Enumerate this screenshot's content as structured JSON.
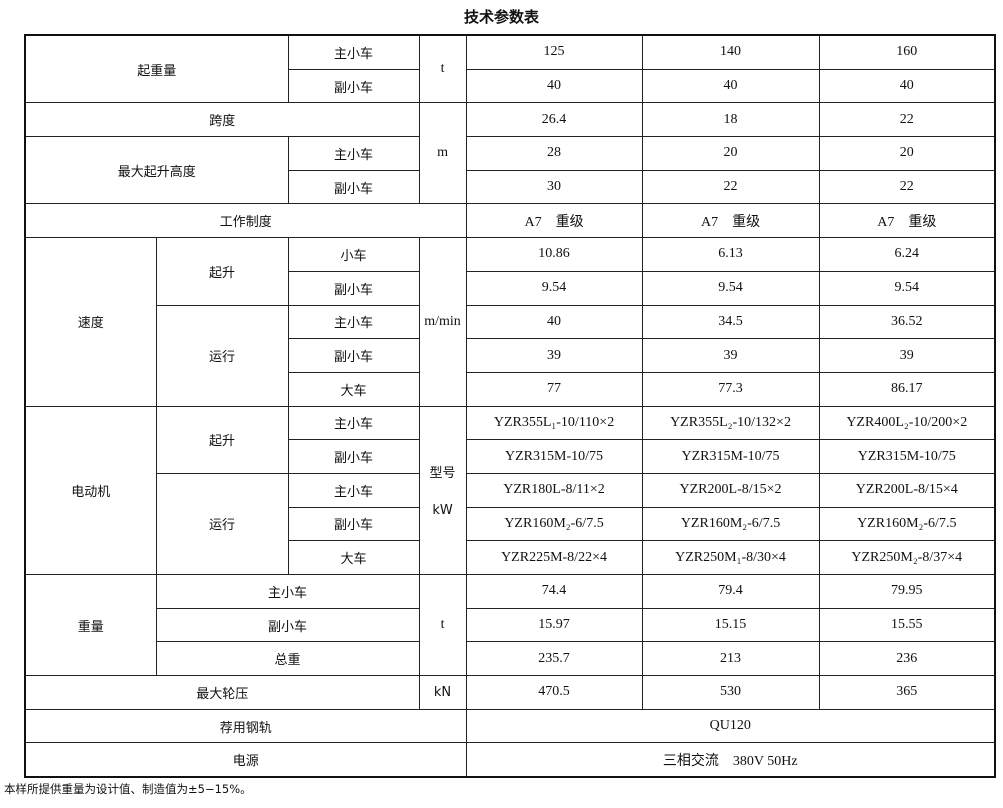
{
  "title": "技术参数表",
  "lifting_capacity": {
    "label": "起重量",
    "main": "主小车",
    "aux": "副小车",
    "unit": "t",
    "main_values": [
      "125",
      "140",
      "160"
    ],
    "aux_values": [
      "40",
      "40",
      "40"
    ]
  },
  "span": {
    "label": "跨度",
    "unit": "m",
    "values": [
      "26.4",
      "18",
      "22"
    ]
  },
  "max_lift_height": {
    "label": "最大起升高度",
    "main": "主小车",
    "aux": "副小车",
    "main_values": [
      "28",
      "20",
      "20"
    ],
    "aux_values": [
      "30",
      "22",
      "22"
    ]
  },
  "work_duty": {
    "label": "工作制度",
    "class": "A7",
    "grade": "重级"
  },
  "speed": {
    "label": "速度",
    "unit": "m/min",
    "hoist": "起升",
    "travel": "运行",
    "hoist_trolley": {
      "label": "小车",
      "values": [
        "10.86",
        "6.13",
        "6.24"
      ]
    },
    "hoist_aux": {
      "label": "副小车",
      "values": [
        "9.54",
        "9.54",
        "9.54"
      ]
    },
    "travel_main": {
      "label": "主小车",
      "values": [
        "40",
        "34.5",
        "36.52"
      ]
    },
    "travel_aux": {
      "label": "副小车",
      "values": [
        "39",
        "39",
        "39"
      ]
    },
    "travel_crane": {
      "label": "大车",
      "values": [
        "77",
        "77.3",
        "86.17"
      ]
    }
  },
  "motor": {
    "label": "电动机",
    "unit_model": "型号",
    "unit_kw": "kW",
    "hoist": "起升",
    "travel": "运行",
    "hoist_main": {
      "label": "主小车",
      "values": [
        "YZR355L₁-10/110×2",
        "YZR355L₂-10/132×2",
        "YZR400L₂-10/200×2"
      ]
    },
    "hoist_aux": {
      "label": "副小车",
      "values": [
        "YZR315M-10/75",
        "YZR315M-10/75",
        "YZR315M-10/75"
      ]
    },
    "travel_main": {
      "label": "主小车",
      "values": [
        "YZR180L-8/11×2",
        "YZR200L-8/15×2",
        "YZR200L-8/15×4"
      ]
    },
    "travel_aux": {
      "label": "副小车",
      "values": [
        "YZR160M₂-6/7.5",
        "YZR160M₂-6/7.5",
        "YZR160M₂-6/7.5"
      ]
    },
    "travel_crane": {
      "label": "大车",
      "values": [
        "YZR225M-8/22×4",
        "YZR250M₁-8/30×4",
        "YZR250M₂-8/37×4"
      ]
    }
  },
  "weight": {
    "label": "重量",
    "unit": "t",
    "main": {
      "label": "主小车",
      "values": [
        "74.4",
        "79.4",
        "79.95"
      ]
    },
    "aux": {
      "label": "副小车",
      "values": [
        "15.97",
        "15.15",
        "15.55"
      ]
    },
    "total": {
      "label": "总重",
      "values": [
        "235.7",
        "213",
        "236"
      ]
    }
  },
  "max_wheel_load": {
    "label": "最大轮压",
    "unit": "kN",
    "values": [
      "470.5",
      "530",
      "365"
    ]
  },
  "rail": {
    "label": "荐用钢轨",
    "value": "QU120"
  },
  "power": {
    "label": "电源",
    "value": "三相交流　380V 50Hz"
  },
  "note": "本样所提供重量为设计值、制造值为±5−15%。"
}
